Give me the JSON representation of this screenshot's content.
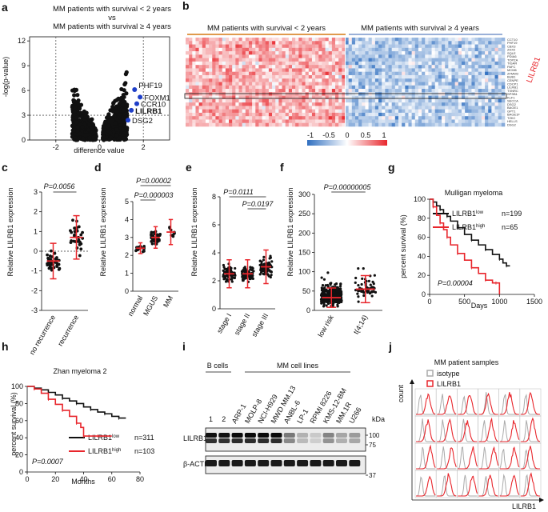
{
  "panel_labels": {
    "a": "a",
    "b": "b",
    "c": "c",
    "d": "d",
    "e": "e",
    "f": "f",
    "g": "g",
    "h": "h",
    "i": "i",
    "j": "j"
  },
  "chart_data": [
    {
      "panel": "a",
      "type": "scatter",
      "title_line1": "MM patients with survival < 2 years",
      "title_line2": "vs",
      "title_line3": "MM patients with survival ≥ 4 years",
      "xlabel": "difference value",
      "ylabel": "-log(p-value)",
      "xlim": [
        -3.2,
        3.2
      ],
      "ylim": [
        0,
        12.5
      ],
      "xticks": [
        "-2",
        "0",
        "2"
      ],
      "yticks": [
        "0",
        "3",
        "6",
        "9",
        "12"
      ],
      "threshold_x": [
        -2,
        2
      ],
      "threshold_y": 3,
      "highlighted": [
        {
          "label": "PHF19",
          "x": 1.6,
          "y": 6.1
        },
        {
          "label": "FOXM1",
          "x": 1.85,
          "y": 5.2
        },
        {
          "label": "CCR10",
          "x": 1.7,
          "y": 4.4
        },
        {
          "label": "LILRB1",
          "x": 1.45,
          "y": 3.6
        },
        {
          "label": "DSG2",
          "x": 1.3,
          "y": 2.4
        }
      ]
    },
    {
      "panel": "b",
      "type": "heatmap",
      "group_left": "MM patients with survival < 2 years",
      "group_right": "MM patients with survival ≥ 4 years",
      "genes": [
        "CCT10",
        "PHF19",
        "CBX3",
        "ZHX2",
        "SQLE",
        "PDIA6",
        "TOPZA",
        "TIGAR",
        "PAFC",
        "MCM6",
        "ZFMW2",
        "BUB1",
        "CENPE",
        "CDCP1",
        "LILRB1",
        "TXNRC",
        "SPSB1",
        "KLF1",
        "SECCA",
        "DSG2",
        "BAGE1",
        "GPT1",
        "BAGE1F",
        "TZKC",
        "HELLS",
        "DSG2"
      ],
      "highlight_gene": "LILRB1",
      "colorbar_ticks": [
        "-1",
        "-0.5",
        "0",
        "0.5",
        "1"
      ],
      "vmin": -1,
      "vmax": 1
    },
    {
      "panel": "c",
      "type": "scatter",
      "ylabel": "Relative LILRB1 expression",
      "categories": [
        "no recurrence",
        "recurrence"
      ],
      "ylim": [
        -3,
        3
      ],
      "yticks": [
        "-3",
        "-2",
        "-1",
        "0",
        "1",
        "2",
        "3"
      ],
      "means": [
        -0.5,
        0.7
      ],
      "sd": [
        0.9,
        1.1
      ],
      "p_value": "P=0.0056"
    },
    {
      "panel": "d",
      "type": "scatter",
      "ylabel": "Relative LILRB1 expression",
      "categories": [
        "normal",
        "MGUS",
        "MM"
      ],
      "ylim": [
        0,
        5
      ],
      "yticks": [
        "0",
        "1",
        "2",
        "3",
        "4",
        "5"
      ],
      "means": [
        2.4,
        3.0,
        3.3
      ],
      "sd": [
        0.3,
        0.6,
        0.7
      ],
      "p_values": [
        "P=0.00002",
        "P=0.000003"
      ]
    },
    {
      "panel": "e",
      "type": "scatter",
      "ylabel": "Relative LILRB1 expression",
      "categories": [
        "stage I",
        "stage II",
        "stage III"
      ],
      "ylim": [
        0,
        8
      ],
      "yticks": [
        "0",
        "2",
        "4",
        "6",
        "8"
      ],
      "means": [
        2.5,
        2.5,
        3.0
      ],
      "sd": [
        1.0,
        1.0,
        1.2
      ],
      "p_values": [
        "P=0.0111",
        "P=0.0197"
      ]
    },
    {
      "panel": "f",
      "type": "scatter",
      "ylabel": "Relative LILRB1 expression",
      "categories": [
        "low risk",
        "t(4;14)"
      ],
      "ylim": [
        0,
        300
      ],
      "yticks": [
        "0",
        "50",
        "100",
        "150",
        "200",
        "250",
        "300"
      ],
      "means": [
        33,
        55
      ],
      "sd": [
        25,
        35
      ],
      "p_value": "P=0.00000005"
    },
    {
      "panel": "g",
      "type": "line",
      "title": "Mulligan myeloma",
      "xlabel": "Days",
      "ylabel": "percent survival (%)",
      "xlim": [
        0,
        1500
      ],
      "ylim": [
        0,
        100
      ],
      "xticks": [
        "0",
        "500",
        "1000",
        "1500"
      ],
      "yticks": [
        "0",
        "20",
        "40",
        "60",
        "80",
        "100"
      ],
      "series": [
        {
          "name": "LILRB1",
          "sup": "low",
          "n": "n=199",
          "color": "#111111",
          "x": [
            0,
            50,
            100,
            150,
            200,
            250,
            300,
            400,
            500,
            600,
            700,
            800,
            900,
            1000,
            1050,
            1100,
            1150
          ],
          "y": [
            100,
            97,
            93,
            89,
            85,
            82,
            77,
            70,
            63,
            57,
            52,
            47,
            42,
            37,
            33,
            30,
            30
          ]
        },
        {
          "name": "LILRB1",
          "sup": "high",
          "n": "n=65",
          "color": "#e8262c",
          "x": [
            0,
            50,
            100,
            150,
            200,
            250,
            300,
            400,
            500,
            600,
            700,
            800,
            900,
            950,
            1000,
            1000
          ],
          "y": [
            100,
            92,
            83,
            75,
            68,
            60,
            52,
            43,
            36,
            28,
            22,
            15,
            12,
            12,
            12,
            0
          ]
        }
      ],
      "p_value": "P=0.00004"
    },
    {
      "panel": "h",
      "type": "line",
      "title": "Zhan myeloma 2",
      "xlabel": "Months",
      "ylabel": "percent survival (%)",
      "xlim": [
        0,
        80
      ],
      "ylim": [
        0,
        100
      ],
      "xticks": [
        "0",
        "20",
        "40",
        "60",
        "80"
      ],
      "yticks": [
        "0",
        "20",
        "40",
        "60",
        "80",
        "100"
      ],
      "series": [
        {
          "name": "LILRB1",
          "sup": "low",
          "n": "n=311",
          "color": "#111111",
          "x": [
            0,
            5,
            10,
            15,
            20,
            25,
            30,
            35,
            40,
            45,
            50,
            55,
            60,
            65,
            70
          ],
          "y": [
            100,
            98,
            96,
            93,
            90,
            86,
            83,
            80,
            76,
            73,
            70,
            68,
            65,
            63,
            63
          ]
        },
        {
          "name": "LILRB1",
          "sup": "high",
          "n": "n=103",
          "color": "#e8262c",
          "x": [
            0,
            5,
            10,
            15,
            20,
            25,
            30,
            35,
            38,
            40,
            45,
            50,
            55,
            60
          ],
          "y": [
            100,
            97,
            92,
            85,
            79,
            72,
            65,
            57,
            52,
            42,
            42,
            42,
            42,
            42
          ]
        }
      ],
      "p_value": "P=0.0007"
    },
    {
      "panel": "j",
      "type": "histogram_grid",
      "title": "MM patient samples",
      "ylabel": "count",
      "xlabel": "LILRB1",
      "legend": [
        {
          "label": "isotype",
          "color": "#aaaaaa"
        },
        {
          "label": "LILRB1",
          "color": "#e8262c"
        }
      ],
      "rows": 4,
      "cols": 6
    }
  ],
  "blot": {
    "group_bcells": "B cells",
    "group_mm": "MM cell lines",
    "lanes": [
      "1",
      "2",
      "ARP-1",
      "MOLP-8",
      "NCI-H929",
      "MWD MM.13",
      "ANBL-6",
      "LP-1",
      "RPMI 8226",
      "KMS-12-BM",
      "MM.1R",
      "U266"
    ],
    "rows": [
      "LILRB1",
      "β-ACTIN"
    ],
    "kda_label": "kDa",
    "markers": [
      "100",
      "75",
      "37"
    ]
  }
}
